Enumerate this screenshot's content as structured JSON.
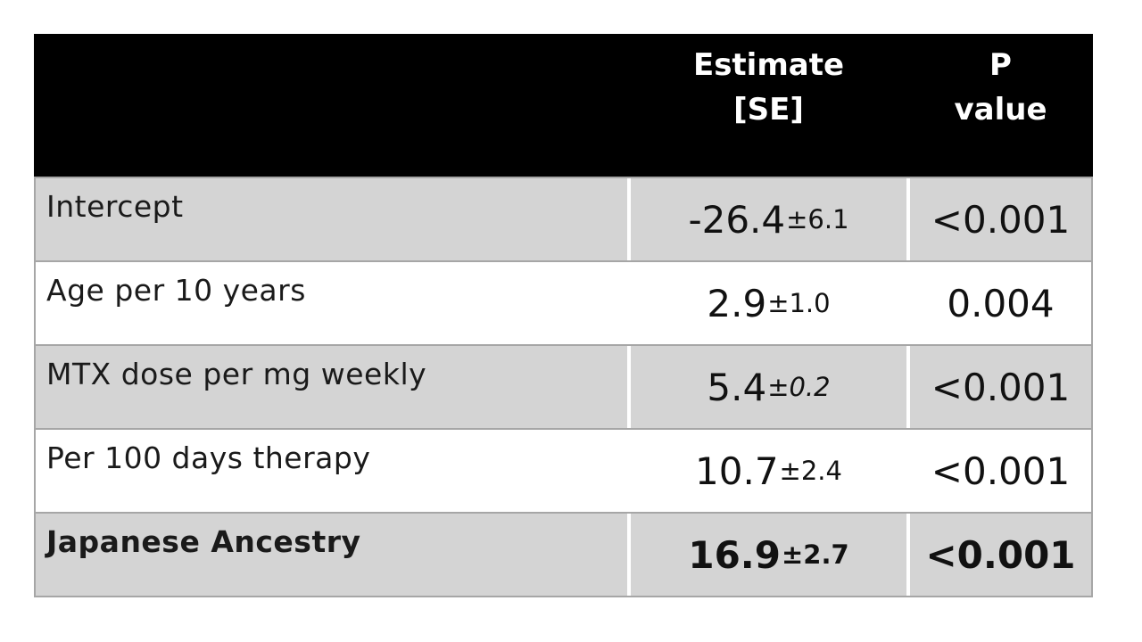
{
  "table": {
    "header": {
      "spacer": "",
      "estimate_line1": "Estimate",
      "estimate_line2": "[SE]",
      "p_line1": "P",
      "p_line2": "value"
    },
    "rows": [
      {
        "label": "Intercept",
        "estimate": "-26.4",
        "se": "±6.1",
        "p": "<0.001"
      },
      {
        "label": "Age per 10 years",
        "estimate": "2.9",
        "se": "±1.0",
        "p": "0.004"
      },
      {
        "label": "MTX dose per mg weekly",
        "estimate": "5.4",
        "se": "±0.2",
        "p": "<0.001"
      },
      {
        "label": "Per 100 days therapy",
        "estimate": "10.7",
        "se": "±2.4",
        "p": "<0.001"
      },
      {
        "label": "Japanese Ancestry",
        "estimate": "16.9",
        "se": "±2.7",
        "p": "<0.001"
      }
    ]
  },
  "colors": {
    "header_bg": "#000000",
    "header_text": "#ffffff",
    "row_gray": "#d4d4d4",
    "row_white": "#ffffff",
    "border": "#a6a6a6",
    "text": "#1a1a1a"
  },
  "chart_data": {
    "type": "table",
    "title": "",
    "columns": [
      "",
      "Estimate [SE]",
      "P value"
    ],
    "rows": [
      [
        "Intercept",
        "-26.4±6.1",
        "<0.001"
      ],
      [
        "Age per 10 years",
        "2.9±1.0",
        "0.004"
      ],
      [
        "MTX dose per mg weekly",
        "5.4±0.2",
        "<0.001"
      ],
      [
        "Per 100 days therapy",
        "10.7±2.4",
        "<0.001"
      ],
      [
        "Japanese Ancestry",
        "16.9±2.7",
        "<0.001"
      ]
    ]
  }
}
